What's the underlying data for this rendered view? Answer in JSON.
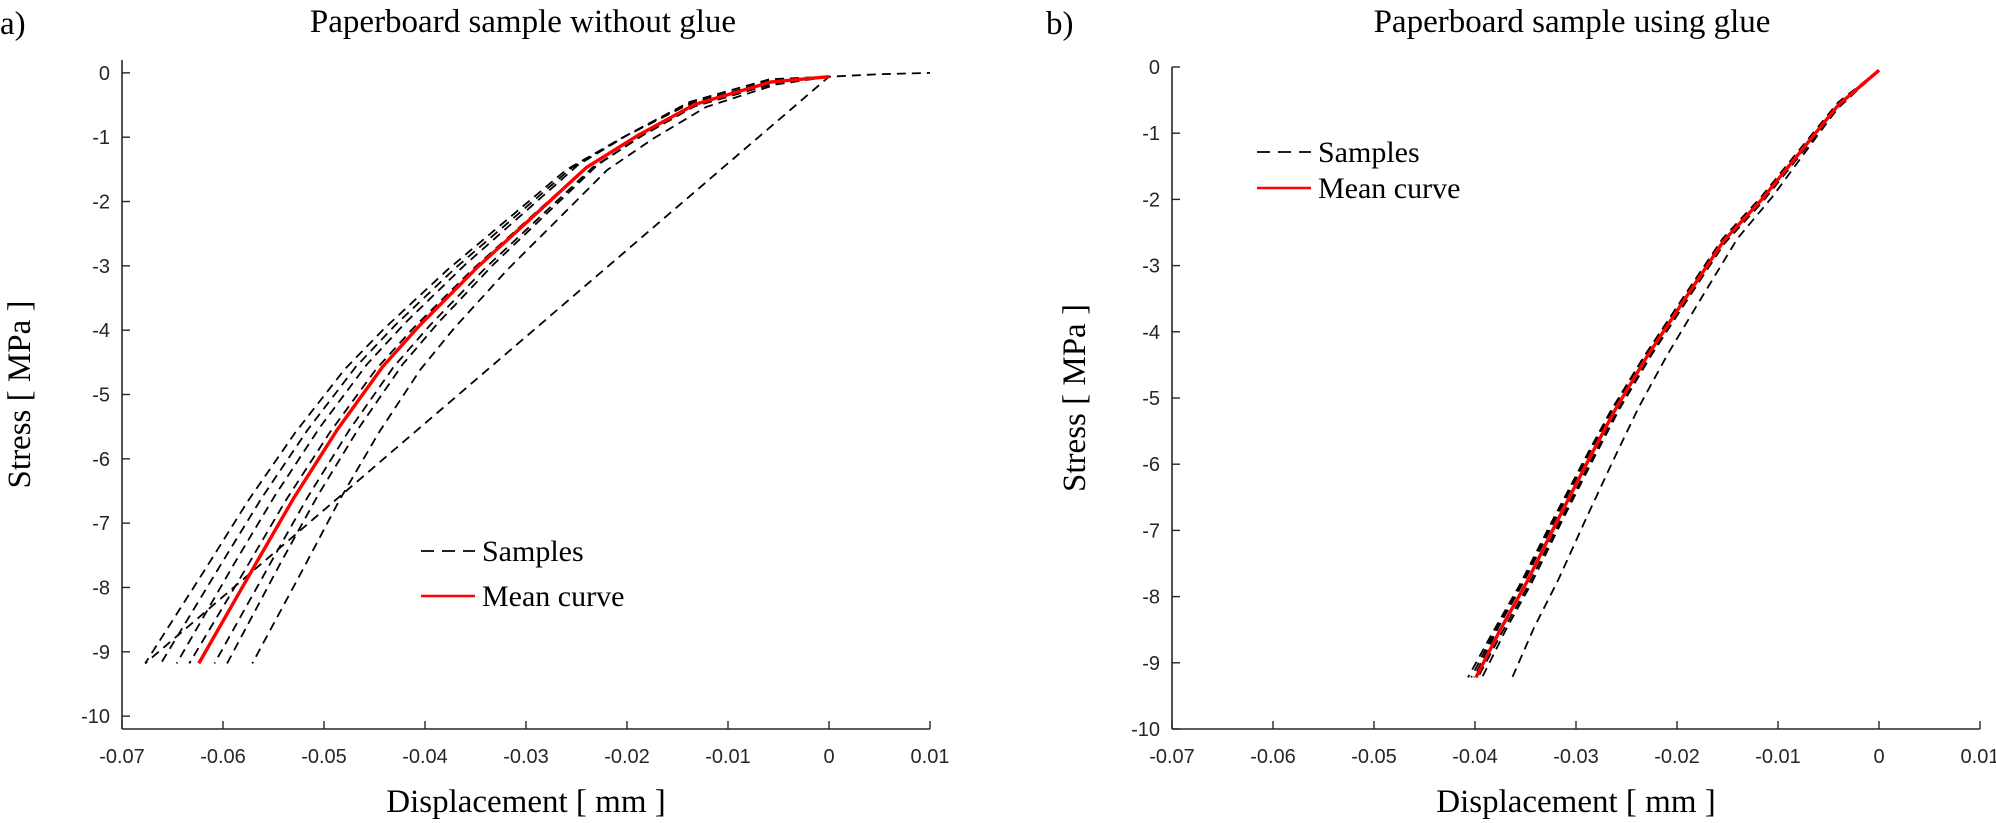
{
  "chart_data": [
    {
      "type": "line",
      "panel_label": "a)",
      "title": "Paperboard sample without glue",
      "xlabel": "Displacement [ mm ]",
      "ylabel": "Stress [ MPa ]",
      "xlim": [
        -0.07,
        0.01
      ],
      "ylim": [
        -10.2,
        0.2
      ],
      "xticks": [
        -0.07,
        -0.06,
        -0.05,
        -0.04,
        -0.03,
        -0.02,
        -0.01,
        0,
        0.01
      ],
      "xtick_labels": [
        "-0.07",
        "-0.06",
        "-0.05",
        "-0.04",
        "-0.03",
        "-0.02",
        "-0.01",
        "0",
        "0.01"
      ],
      "yticks": [
        0,
        -1,
        -2,
        -3,
        -4,
        -5,
        -6,
        -7,
        -8,
        -9,
        -10
      ],
      "ytick_labels": [
        "0",
        "-1",
        "-2",
        "-3",
        "-4",
        "-5",
        "-6",
        "-7",
        "-8",
        "-9",
        "-10"
      ],
      "grid": false,
      "legend": {
        "placement": "lower-center",
        "entries": [
          "Samples",
          "Mean curve"
        ]
      },
      "colors": {
        "samples": "#000000",
        "mean": "#ff0000"
      },
      "mean_curve": {
        "name": "Mean curve",
        "x": [
          0,
          -0.0057,
          -0.0133,
          -0.019,
          -0.024,
          -0.0297,
          -0.0348,
          -0.0405,
          -0.0442,
          -0.0487,
          -0.053,
          -0.0569,
          -0.0624
        ],
        "y": [
          -0.06,
          -0.14,
          -0.49,
          -0.98,
          -1.47,
          -2.29,
          -3.02,
          -3.92,
          -4.57,
          -5.55,
          -6.61,
          -7.67,
          -9.18
        ]
      },
      "sample_scale_factors": [
        1.085,
        1.06,
        1.035,
        1.015,
        0.975,
        0.955,
        0.915
      ],
      "sample_tail": {
        "x": [
          0,
          0.005,
          0.01
        ],
        "y": [
          -0.06,
          -0.02,
          0
        ]
      }
    },
    {
      "type": "line",
      "panel_label": "b)",
      "title": "Paperboard sample using glue",
      "xlabel": "Displacement [ mm ]",
      "ylabel": "Stress [ MPa ]",
      "xlim": [
        -0.07,
        0.01
      ],
      "ylim": [
        -10,
        0
      ],
      "xticks": [
        -0.07,
        -0.06,
        -0.05,
        -0.04,
        -0.03,
        -0.02,
        -0.01,
        0,
        0.01
      ],
      "xtick_labels": [
        "-0.07",
        "-0.06",
        "-0.05",
        "-0.04",
        "-0.03",
        "-0.02",
        "-0.01",
        "0",
        "0.01"
      ],
      "yticks": [
        0,
        -1,
        -2,
        -3,
        -4,
        -5,
        -6,
        -7,
        -8,
        -9,
        -10
      ],
      "ytick_labels": [
        "0",
        "-1",
        "-2",
        "-3",
        "-4",
        "-5",
        "-6",
        "-7",
        "-8",
        "-9",
        "-10"
      ],
      "grid": false,
      "legend": {
        "placement": "top-left",
        "entries": [
          "Samples",
          "Mean curve"
        ]
      },
      "colors": {
        "samples": "#000000",
        "mean": "#ff0000"
      },
      "mean_curve": {
        "name": "Mean curve",
        "x": [
          0,
          -0.004,
          -0.0072,
          -0.0116,
          -0.0154,
          -0.0192,
          -0.023,
          -0.0261,
          -0.0286,
          -0.0318,
          -0.0349,
          -0.0375,
          -0.0399
        ],
        "y": [
          -0.05,
          -0.57,
          -1.17,
          -2.0,
          -2.63,
          -3.5,
          -4.38,
          -5.17,
          -5.89,
          -6.84,
          -7.79,
          -8.5,
          -9.22
        ]
      },
      "sample_scale_factors": [
        1.02,
        1.012,
        1.005,
        0.995,
        0.985,
        0.91
      ],
      "sample_tail": null
    }
  ]
}
